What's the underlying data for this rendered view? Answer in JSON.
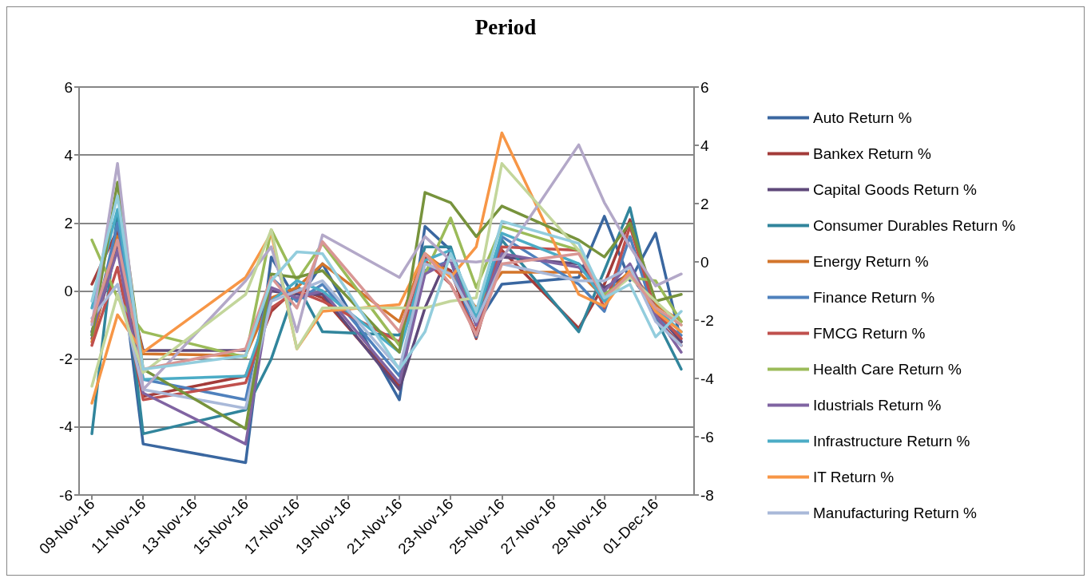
{
  "chart_data": {
    "type": "line",
    "title": "Period",
    "x": [
      "--11-09",
      "--11-10",
      "--11-11",
      "--11-15",
      "--11-16",
      "--11-17",
      "--11-18",
      "--11-21",
      "--11-22",
      "--11-23",
      "--11-24",
      "--11-25",
      "--11-28",
      "--11-29",
      "--11-30",
      "--12-01",
      "--12-02"
    ],
    "xlim": [
      "--11-08T12:00",
      "--12-02T12:00"
    ],
    "xticks": [
      {
        "value": "--11-09",
        "label": "09-Nov-16"
      },
      {
        "value": "--11-11",
        "label": "11-Nov-16"
      },
      {
        "value": "--11-13",
        "label": "13-Nov-16"
      },
      {
        "value": "--11-15",
        "label": "15-Nov-16"
      },
      {
        "value": "--11-17",
        "label": "17-Nov-16"
      },
      {
        "value": "--11-19",
        "label": "19-Nov-16"
      },
      {
        "value": "--11-21",
        "label": "21-Nov-16"
      },
      {
        "value": "--11-23",
        "label": "23-Nov-16"
      },
      {
        "value": "--11-25",
        "label": "25-Nov-16"
      },
      {
        "value": "--11-27",
        "label": "27-Nov-16"
      },
      {
        "value": "--11-29",
        "label": "29-Nov-16"
      },
      {
        "value": "--12-01",
        "label": "01-Dec-16"
      }
    ],
    "ylim": [
      -6,
      6
    ],
    "yticks": [
      -6,
      -4,
      -2,
      0,
      2,
      4,
      6
    ],
    "y2lim": [
      -8,
      6
    ],
    "y2ticks": [
      -8,
      -6,
      -4,
      -2,
      0,
      2,
      4,
      6
    ],
    "grid": "y",
    "legend": "right",
    "marker": "none",
    "line_style": "solid",
    "series": [
      {
        "name": "Auto Return %",
        "color": "#3a67a0",
        "values": [
          -1.2,
          1.6,
          -4.5,
          -5.05,
          1.0,
          -0.3,
          0.8,
          -3.2,
          1.9,
          1.2,
          -1.0,
          0.2,
          0.4,
          2.2,
          0.3,
          1.7,
          -1.5
        ]
      },
      {
        "name": "Bankex Return %",
        "color": "#a33b39",
        "values": [
          0.2,
          1.8,
          -3.1,
          -2.5,
          -0.6,
          0.1,
          -0.2,
          -2.8,
          1.0,
          0.6,
          -1.4,
          1.2,
          -1.1,
          0.2,
          2.1,
          -0.8,
          -1.6
        ]
      },
      {
        "name": "Capital Goods Return %",
        "color": "#5f497a",
        "values": [
          -1.4,
          1.3,
          -1.75,
          -1.75,
          0.0,
          -0.1,
          -0.1,
          -2.9,
          -0.5,
          1.2,
          -1.0,
          1.0,
          0.8,
          0.1,
          0.5,
          -0.6,
          -1.5
        ]
      },
      {
        "name": "Consumer Durables Return %",
        "color": "#31859c",
        "values": [
          -4.2,
          2.3,
          -4.2,
          -3.5,
          -2.0,
          0.2,
          -1.2,
          -1.3,
          1.3,
          1.3,
          -1.0,
          1.5,
          -1.2,
          0.6,
          2.45,
          -0.8,
          -2.3
        ]
      },
      {
        "name": "Energy Return %",
        "color": "#d3752b",
        "values": [
          -1.5,
          1.6,
          -1.85,
          -1.9,
          -0.2,
          0.1,
          0.8,
          -0.9,
          1.1,
          0.5,
          -0.5,
          0.55,
          0.55,
          -0.2,
          0.6,
          -0.4,
          -0.9
        ]
      },
      {
        "name": "Finance Return %",
        "color": "#4f81bd",
        "values": [
          -1.3,
          2.0,
          -2.6,
          -3.2,
          0.4,
          -0.3,
          0.2,
          -2.5,
          0.6,
          0.9,
          -1.35,
          1.6,
          0.2,
          -0.6,
          1.6,
          -0.8,
          -1.3
        ]
      },
      {
        "name": "FMCG Return %",
        "color": "#c0504d",
        "values": [
          -1.6,
          0.7,
          -3.2,
          -2.7,
          -0.5,
          0.0,
          -0.3,
          -1.5,
          0.9,
          0.2,
          -1.2,
          1.3,
          1.2,
          -0.5,
          1.9,
          -0.6,
          -1.4
        ]
      },
      {
        "name": "Health Care Return %",
        "color": "#9bbb59",
        "values": [
          1.5,
          -0.2,
          -1.2,
          -1.95,
          1.8,
          0.3,
          1.4,
          -1.6,
          0.5,
          2.15,
          0.1,
          1.9,
          1.2,
          -0.1,
          0.4,
          0.3,
          -0.9
        ]
      },
      {
        "name": "Idustrials Return %",
        "color": "#8064a2",
        "values": [
          -1.2,
          1.2,
          -3.0,
          -4.5,
          0.1,
          -0.2,
          0.0,
          -2.7,
          0.5,
          0.9,
          -1.0,
          1.1,
          0.7,
          0.0,
          0.8,
          -0.7,
          -1.8
        ]
      },
      {
        "name": "Infrastructure Return %",
        "color": "#4bacc6",
        "values": [
          -0.5,
          2.4,
          -2.6,
          -2.5,
          -0.3,
          0.3,
          0.0,
          -1.8,
          0.9,
          1.2,
          -0.8,
          1.7,
          0.8,
          -0.3,
          0.5,
          -0.5,
          -1.2
        ]
      },
      {
        "name": "IT Return %",
        "color": "#f79646",
        "values": [
          -3.3,
          -0.7,
          -1.8,
          0.4,
          1.7,
          -1.7,
          -0.6,
          -0.4,
          1.1,
          0.4,
          1.3,
          4.65,
          -0.1,
          -0.45,
          0.6,
          -0.6,
          -1.2
        ]
      },
      {
        "name": "Manufacturing Return %",
        "color": "#a9b9d9",
        "values": [
          -0.8,
          0.2,
          -2.9,
          -3.45,
          -0.3,
          0.0,
          0.3,
          -2.3,
          0.8,
          0.5,
          -0.9,
          0.8,
          0.3,
          0.3,
          0.7,
          -0.9,
          -1.6
        ]
      },
      {
        "color": "#77933c",
        "values": [
          -1.3,
          3.2,
          -2.3,
          -4.05,
          0.5,
          0.4,
          0.6,
          -1.8,
          2.9,
          2.6,
          1.6,
          2.5,
          1.5,
          1.0,
          2.0,
          -0.3,
          -0.1
        ]
      },
      {
        "color": "#b3a8c8",
        "values": [
          -1.0,
          3.75,
          -2.9,
          0.3,
          1.3,
          -1.2,
          1.65,
          0.4,
          1.6,
          0.9,
          0.85,
          0.95,
          4.3,
          2.6,
          1.3,
          0.15,
          0.5
        ]
      },
      {
        "color": "#c3d69b",
        "values": [
          -2.8,
          -0.1,
          -2.4,
          -0.1,
          1.8,
          -1.7,
          -0.5,
          -0.5,
          -0.5,
          -0.3,
          -0.2,
          3.75,
          1.2,
          -0.2,
          0.4,
          -0.3,
          -1.0
        ]
      },
      {
        "color": "#d99694",
        "values": [
          -0.9,
          1.5,
          -2.3,
          -1.7,
          0.4,
          -0.5,
          1.45,
          -1.2,
          1.1,
          0.2,
          -1.3,
          0.8,
          1.1,
          -0.2,
          0.5,
          -0.5,
          -1.0
        ]
      },
      {
        "color": "#93cddd",
        "values": [
          -0.3,
          2.8,
          -2.3,
          -1.9,
          0.3,
          1.15,
          1.1,
          -2.3,
          -1.2,
          1.1,
          -0.6,
          2.05,
          1.4,
          -0.2,
          0.2,
          -1.35,
          -0.6
        ]
      }
    ]
  }
}
